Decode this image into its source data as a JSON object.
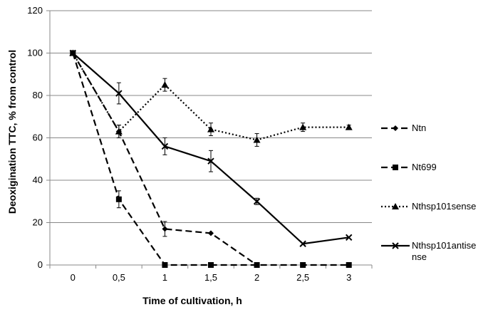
{
  "chart_data": {
    "type": "line",
    "title": "",
    "xlabel": "Time of cultivation, h",
    "ylabel": "Deoxigination TTC,  % from control",
    "categories": [
      "0",
      "0,5",
      "1",
      "1,5",
      "2",
      "2,5",
      "3"
    ],
    "ylim": [
      0,
      120
    ],
    "yticks": [
      "0",
      "20",
      "40",
      "60",
      "80",
      "100",
      "120"
    ],
    "grid": "horizontal",
    "legend_position": "right",
    "series": [
      {
        "name": "Ntn",
        "values": [
          100,
          63,
          17,
          15,
          0,
          0,
          0
        ],
        "errors": [
          0,
          3,
          3.5,
          0,
          0,
          0,
          0
        ],
        "marker": "diamond",
        "line_style": "dashed",
        "points": [
          0,
          1,
          2,
          3,
          4
        ]
      },
      {
        "name": "Nt699",
        "values": [
          100,
          31,
          0,
          0,
          0,
          0,
          0
        ],
        "errors": [
          0,
          4,
          0,
          0,
          0,
          0,
          0
        ],
        "marker": "square",
        "line_style": "dashed",
        "points": [
          0,
          1,
          2,
          3,
          4,
          5,
          6
        ]
      },
      {
        "name": "Nthsp101sense",
        "values": [
          100,
          63,
          85,
          64,
          59,
          65,
          65
        ],
        "errors": [
          0,
          3,
          3,
          3,
          3,
          2,
          1
        ],
        "marker": "triangle",
        "line_style": "dotted",
        "points": [
          0,
          1,
          2,
          3,
          4,
          5,
          6
        ]
      },
      {
        "name": "Nthsp101antise\nnse",
        "values": [
          100,
          81,
          56,
          49,
          30,
          10,
          13
        ],
        "errors": [
          0,
          5,
          4,
          5,
          1.5,
          0,
          0
        ],
        "marker": "x",
        "line_style": "solid",
        "points": [
          0,
          1,
          2,
          3,
          4,
          5,
          6
        ]
      }
    ]
  }
}
